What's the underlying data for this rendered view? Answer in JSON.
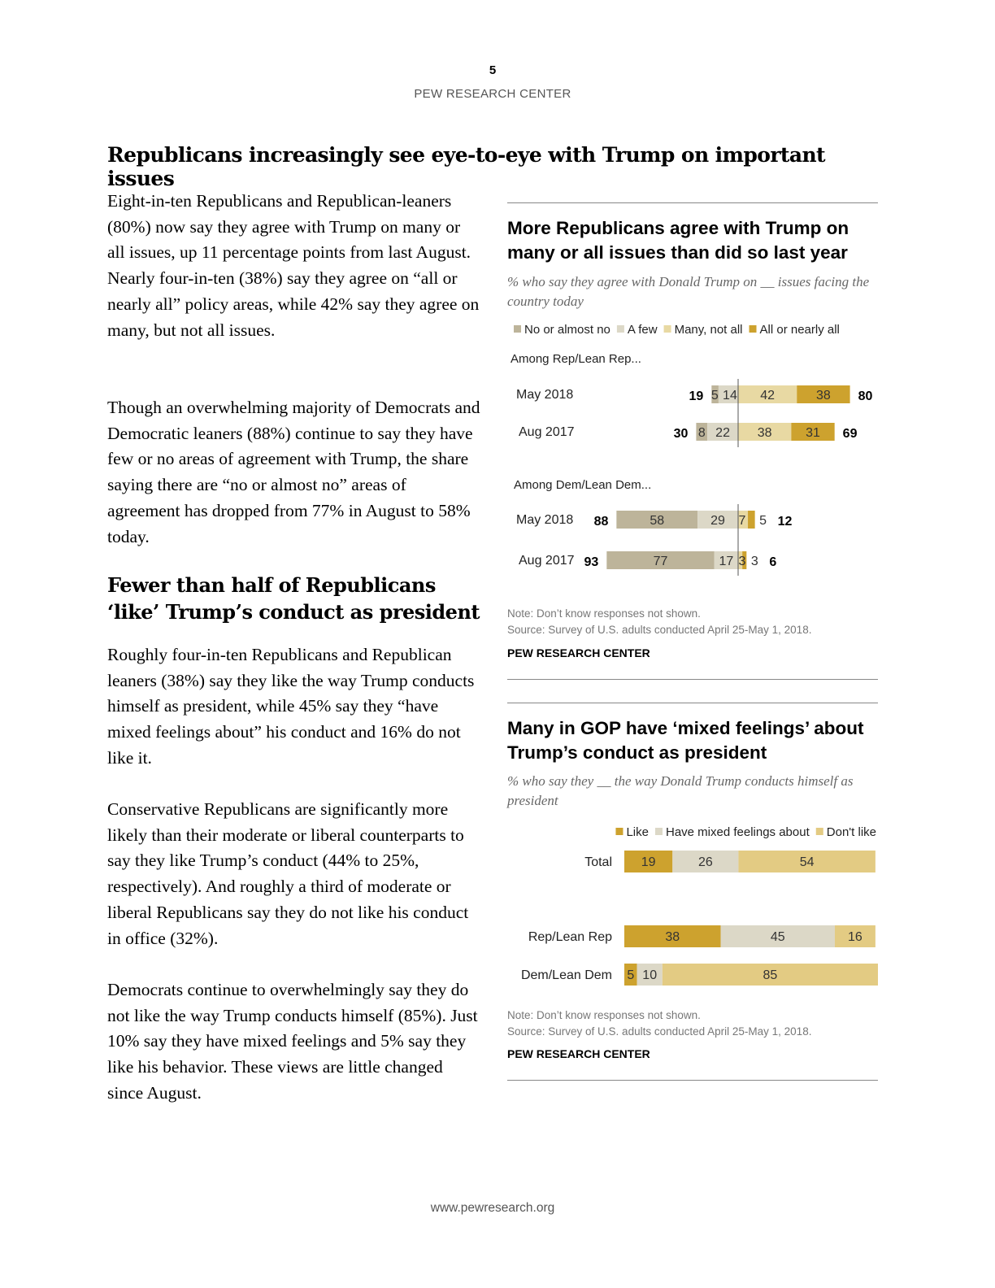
{
  "header": {
    "page_number": "5",
    "org": "PEW RESEARCH CENTER"
  },
  "article": {
    "heading": "Republicans increasingly see eye-to-eye with Trump on important issues",
    "para1": "Eight-in-ten Republicans and Republican-leaners (80%) now say they agree with Trump on many or all issues, up 11 percentage points from last August. Nearly four-in-ten (38%) say they agree on “all or nearly all” policy areas, while 42% say they agree on many, but not all issues.",
    "para2": "Though an overwhelming majority of Democrats and Democratic leaners (88%) continue to say they have few or no areas of agreement with Trump, the share saying there are “no or almost no” areas of agreement has dropped from 77% in August to 58% today.",
    "subheading": "Fewer than half of Republicans ‘like’ Trump’s conduct as president",
    "para3": "Roughly four-in-ten Republicans and Republican leaners (38%) say they like the way Trump conducts himself as president, while 45% say they “have mixed feelings about” his conduct and 16% do not like it.",
    "para4": "Conservative Republicans are significantly more likely than their moderate or liberal counterparts to say they like Trump’s conduct (44% to 25%, respectively). And roughly a third of moderate or liberal Republicans say they do not like his conduct in office (32%).",
    "para5": "Democrats continue to overwhelmingly say they do not like the way Trump conducts himself (85%). Just 10% say they have mixed feelings and 5% say they like his behavior. These views are little changed since August."
  },
  "chart_data": [
    {
      "type": "bar",
      "title": "More Republicans agree with Trump on many or all issues than did so last year",
      "subtitle": "% who say they agree with Donald Trump on __ issues facing the country today",
      "legend": [
        "No or almost no",
        "A few",
        "Many, not all",
        "All or nearly all"
      ],
      "colors": [
        "#bdb49a",
        "#dcd8c7",
        "#e8d9a3",
        "#cda22e"
      ],
      "groups": [
        {
          "label": "Among Rep/Lean Rep...",
          "rows": [
            {
              "label": "May 2018",
              "values": [
                5,
                14,
                42,
                38
              ],
              "net_disagree": 19,
              "net_agree": 80
            },
            {
              "label": "Aug 2017",
              "values": [
                8,
                22,
                38,
                31
              ],
              "net_disagree": 30,
              "net_agree": 69
            }
          ]
        },
        {
          "label": "Among Dem/Lean Dem...",
          "rows": [
            {
              "label": "May 2018",
              "values": [
                58,
                29,
                7,
                5
              ],
              "net_disagree": 88,
              "net_agree": 12
            },
            {
              "label": "Aug 2017",
              "values": [
                77,
                17,
                3,
                3
              ],
              "net_disagree": 93,
              "net_agree": 6
            }
          ]
        }
      ],
      "note": "Note: Don’t know responses not shown.",
      "source": "Source: Survey of U.S. adults conducted April 25-May 1, 2018.",
      "org": "PEW RESEARCH CENTER"
    },
    {
      "type": "bar",
      "title": "Many in GOP have ‘mixed feelings’ about Trump’s conduct as president",
      "subtitle": "% who say they __ the way Donald Trump conducts himself as president",
      "legend": [
        "Like",
        "Have mixed feelings about",
        "Don't like"
      ],
      "colors": [
        "#cda22e",
        "#dcd8c7",
        "#e3cb83"
      ],
      "rows": [
        {
          "label": "Total",
          "values": [
            19,
            26,
            54
          ]
        },
        {
          "label": "Rep/Lean Rep",
          "values": [
            38,
            45,
            16
          ]
        },
        {
          "label": "Dem/Lean Dem",
          "values": [
            5,
            10,
            85
          ]
        }
      ],
      "note": "Note: Don’t know responses not shown.",
      "source": "Source: Survey of U.S. adults conducted April 25-May 1, 2018.",
      "org": "PEW RESEARCH CENTER"
    }
  ],
  "footer": {
    "url": "www.pewresearch.org"
  }
}
